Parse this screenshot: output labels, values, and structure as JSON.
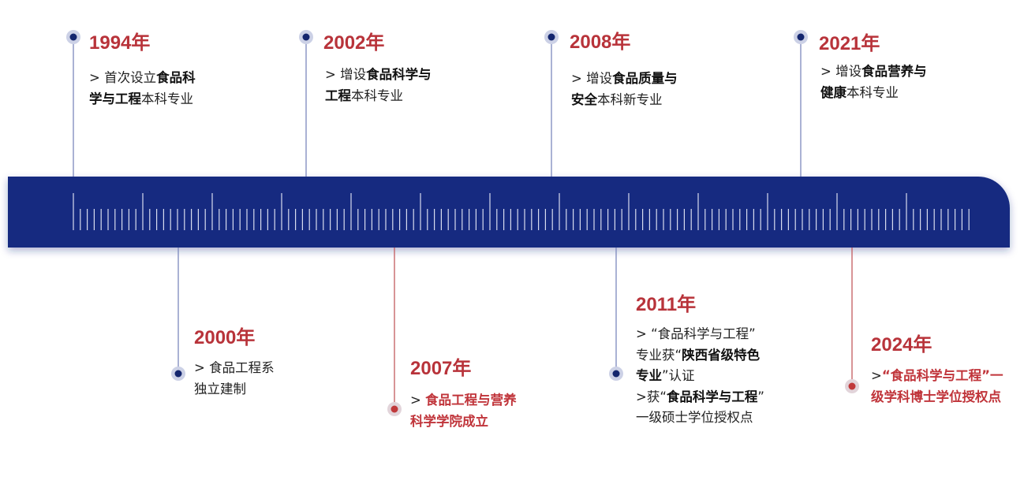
{
  "events": [
    {
      "year": "1994年",
      "lines": [
        [
          {
            "text": "> 首次设立"
          },
          {
            "text": "食品科",
            "bold": true
          }
        ],
        [
          {
            "text": "学与工程",
            "bold": true
          },
          {
            "text": "本科专业"
          }
        ]
      ]
    },
    {
      "year": "2002年",
      "lines": [
        [
          {
            "text": "> 增设"
          },
          {
            "text": "食品科学与",
            "bold": true
          }
        ],
        [
          {
            "text": "工程",
            "bold": true
          },
          {
            "text": "本科专业"
          }
        ]
      ]
    },
    {
      "year": "2008年",
      "lines": [
        [
          {
            "text": "> 增设"
          },
          {
            "text": "食品质量与",
            "bold": true
          }
        ],
        [
          {
            "text": "安全",
            "bold": true
          },
          {
            "text": "本科新专业"
          }
        ]
      ]
    },
    {
      "year": "2021年",
      "lines": [
        [
          {
            "text": "> 增设"
          },
          {
            "text": "食品营养与",
            "bold": true
          }
        ],
        [
          {
            "text": "健康",
            "bold": true
          },
          {
            "text": "本科专业"
          }
        ]
      ]
    },
    {
      "year": "2000年",
      "lines": [
        [
          {
            "text": "> 食品工程系"
          }
        ],
        [
          {
            "text": "独立建制"
          }
        ]
      ]
    },
    {
      "year": "2007年",
      "highlight": true,
      "lines": [
        [
          {
            "text": "> "
          },
          {
            "text": "食品工程与营养",
            "bold": true
          }
        ],
        [
          {
            "text": "科学学院成立",
            "bold": true
          }
        ]
      ]
    },
    {
      "year": "2011年",
      "lines": [
        [
          {
            "text": "> “食品科学与工程”"
          }
        ],
        [
          {
            "text": "专业获“"
          },
          {
            "text": "陕西省级特色",
            "bold": true
          }
        ],
        [
          {
            "text": "专业",
            "bold": true
          },
          {
            "text": "”认证"
          }
        ],
        [
          {
            "text": ">获“"
          },
          {
            "text": "食品科学与工程",
            "bold": true
          },
          {
            "text": "”"
          }
        ],
        [
          {
            "text": "一级硕士学位授权点"
          }
        ]
      ]
    },
    {
      "year": "2024年",
      "highlight": true,
      "lines": [
        [
          {
            "text": ">"
          },
          {
            "text": "“食品科学与工程”一",
            "bold": true
          }
        ],
        [
          {
            "text": "级学科博士学位授权点",
            "bold": true
          }
        ]
      ]
    }
  ]
}
